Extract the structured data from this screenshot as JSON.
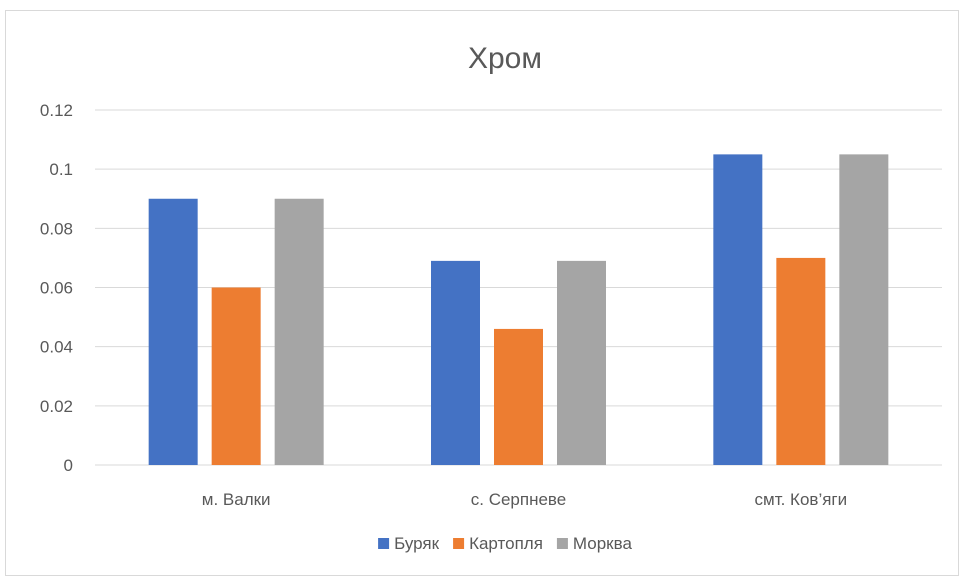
{
  "chart_data": {
    "type": "bar",
    "title": "Хром",
    "xlabel": "",
    "ylabel": "",
    "categories": [
      "м. Валки",
      "с. Серпневе",
      "смт. Ков’яги"
    ],
    "series": [
      {
        "name": "Буряк",
        "color": "#4472c4",
        "values": [
          0.09,
          0.069,
          0.105
        ]
      },
      {
        "name": "Картопля",
        "color": "#ed7d31",
        "values": [
          0.06,
          0.046,
          0.07
        ]
      },
      {
        "name": "Морква",
        "color": "#a5a5a5",
        "values": [
          0.09,
          0.069,
          0.105
        ]
      }
    ],
    "ylim": [
      0,
      0.12
    ],
    "yticks": [
      "0",
      "0.02",
      "0.04",
      "0.06",
      "0.08",
      "0.1",
      "0.12"
    ],
    "grid": true,
    "legend_position": "bottom"
  }
}
